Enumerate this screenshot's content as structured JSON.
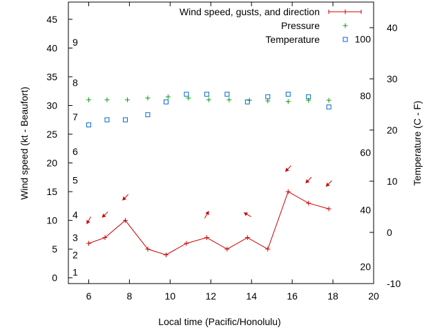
{
  "chart_data": {
    "type": "line",
    "xlabel": "Local time (Pacific/Honolulu)",
    "ylabel": "Wind speed (kt - Beaufort)",
    "y2label": "Temperature (C - F)",
    "xlim": [
      5,
      20
    ],
    "ylim": [
      -1,
      48
    ],
    "y2lim": [
      -10,
      45
    ],
    "x_ticks": [
      6,
      8,
      10,
      12,
      14,
      16,
      18,
      20
    ],
    "y_ticks": [
      0,
      5,
      10,
      15,
      20,
      25,
      30,
      35,
      40,
      45
    ],
    "y2_ticks": [
      -10,
      0,
      10,
      20,
      30,
      40
    ],
    "beaufort_labels": [
      {
        "label": "1",
        "kt": 1
      },
      {
        "label": "2",
        "kt": 4
      },
      {
        "label": "3",
        "kt": 7
      },
      {
        "label": "4",
        "kt": 11
      },
      {
        "label": "5",
        "kt": 17
      },
      {
        "label": "6",
        "kt": 22
      },
      {
        "label": "7",
        "kt": 28
      },
      {
        "label": "8",
        "kt": 34
      },
      {
        "label": "9",
        "kt": 41
      }
    ],
    "fahrenheit_labels": [
      {
        "label": "20",
        "c": -6.7
      },
      {
        "label": "40",
        "c": 4.4
      },
      {
        "label": "60",
        "c": 15.6
      },
      {
        "label": "80",
        "c": 26.7
      },
      {
        "label": "100",
        "c": 37.8
      }
    ],
    "legend": [
      {
        "label": "Wind speed, gusts, and direction",
        "color": "#cc0000",
        "marker": "line-plus"
      },
      {
        "label": "Pressure",
        "color": "#00a000",
        "marker": "plus"
      },
      {
        "label": "Temperature",
        "color": "#0066cc",
        "marker": "square"
      }
    ],
    "series": [
      {
        "name": "Wind speed",
        "x": [
          6,
          6.8,
          7.8,
          8.9,
          9.8,
          10.8,
          11.8,
          12.8,
          13.8,
          14.8,
          15.8,
          16.8,
          17.8
        ],
        "values": [
          6,
          7,
          10,
          5,
          4,
          6,
          7,
          5,
          7,
          5,
          15,
          13,
          12
        ]
      },
      {
        "name": "Wind direction",
        "x": [
          6,
          6.8,
          7.8,
          11.8,
          13.8,
          15.8,
          16.8,
          17.8
        ],
        "values": [
          10,
          11,
          14,
          11,
          11,
          19,
          17,
          16.4
        ],
        "direction_deg": [
          210,
          225,
          225,
          30,
          300,
          225,
          225,
          225
        ]
      },
      {
        "name": "Pressure",
        "x": [
          6,
          6.9,
          7.9,
          8.9,
          9.9,
          10.9,
          11.9,
          12.9,
          13.9,
          14.8,
          15.8,
          16.8,
          17.8
        ],
        "values": [
          31,
          31,
          31,
          31.3,
          31.5,
          31.3,
          31,
          31,
          30.9,
          30.8,
          30.7,
          30.9,
          30.9
        ]
      },
      {
        "name": "Temperature",
        "x": [
          6,
          6.9,
          7.8,
          8.9,
          9.8,
          10.8,
          11.8,
          12.8,
          13.8,
          14.8,
          15.8,
          16.8,
          17.8
        ],
        "values": [
          21,
          22,
          22,
          23,
          25.5,
          27,
          27,
          27,
          25.5,
          26.5,
          27,
          26.5,
          24.5
        ]
      }
    ]
  }
}
